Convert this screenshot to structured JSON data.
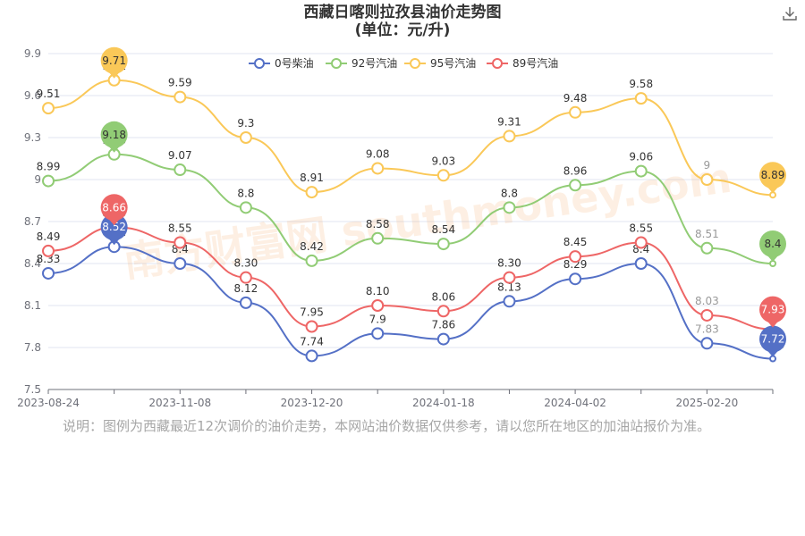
{
  "chart_title": "西藏日喀则拉孜县油价走势图",
  "chart_subtitle": "(单位：元/升)",
  "note": "说明：图例为西藏最近12次调价的油价走势，本网站油价数据仅供参考，请以您所在地区的加油站报价为准。",
  "watermark": "南方财富网 southmoney.com",
  "icons": {
    "download": "download-icon"
  },
  "chart_data": {
    "type": "line",
    "title": "西藏日喀则拉孜县油价走势图",
    "subtitle": "(单位：元/升)",
    "x_tick_labels": [
      "2023-08-24",
      "2023-11-08",
      "2023-12-20",
      "2024-01-18",
      "2024-04-02",
      "2025-02-20"
    ],
    "y_ticks": [
      7.5,
      7.8,
      8.1,
      8.4,
      8.7,
      9,
      9.3,
      9.6,
      9.9
    ],
    "y_tick_labels": [
      "7.5",
      "7.8",
      "8.1",
      "8.4",
      "8.7",
      "9",
      "9.3",
      "9.6",
      "9.9"
    ],
    "ylim": [
      7.5,
      9.9
    ],
    "legend_position": "top-center",
    "grid": true,
    "series": [
      {
        "name": "0号柴油",
        "color": "#5470c6",
        "values": [
          8.33,
          8.52,
          8.4,
          8.12,
          7.74,
          7.9,
          7.86,
          8.13,
          8.29,
          8.4,
          7.83,
          7.72
        ],
        "labels": [
          "8.33",
          "8.52",
          "8.4",
          "8.12",
          "7.74",
          "7.9",
          "7.86",
          "8.13",
          "8.29",
          "8.4",
          "7.83",
          "7.72"
        ],
        "max_index": 1,
        "min_index": 11
      },
      {
        "name": "92号汽油",
        "color": "#91cc75",
        "values": [
          8.99,
          9.18,
          9.07,
          8.8,
          8.42,
          8.58,
          8.54,
          8.8,
          8.96,
          9.06,
          8.51,
          8.4
        ],
        "labels": [
          "8.99",
          "9.18",
          "9.07",
          "8.8",
          "8.42",
          "8.58",
          "8.54",
          "8.8",
          "8.96",
          "9.06",
          "8.51",
          "8.4"
        ],
        "max_index": 1,
        "min_index": 11
      },
      {
        "name": "95号汽油",
        "color": "#fac858",
        "values": [
          9.51,
          9.71,
          9.59,
          9.3,
          8.91,
          9.08,
          9.03,
          9.31,
          9.48,
          9.58,
          9,
          8.89
        ],
        "labels": [
          "9.51",
          "9.71",
          "9.59",
          "9.3",
          "8.91",
          "9.08",
          "9.03",
          "9.31",
          "9.48",
          "9.58",
          "9",
          "8.89"
        ],
        "max_index": 1,
        "min_index": 11
      },
      {
        "name": "89号汽油",
        "color": "#ee6666",
        "values": [
          8.49,
          8.66,
          8.55,
          8.3,
          7.95,
          8.1,
          8.06,
          8.3,
          8.45,
          8.55,
          8.03,
          7.93
        ],
        "labels": [
          "8.49",
          "8.66",
          "8.55",
          "8.30",
          "7.95",
          "8.10",
          "8.06",
          "8.30",
          "8.45",
          "8.55",
          "8.03",
          "7.93"
        ],
        "max_index": 1,
        "min_index": 11
      }
    ]
  }
}
